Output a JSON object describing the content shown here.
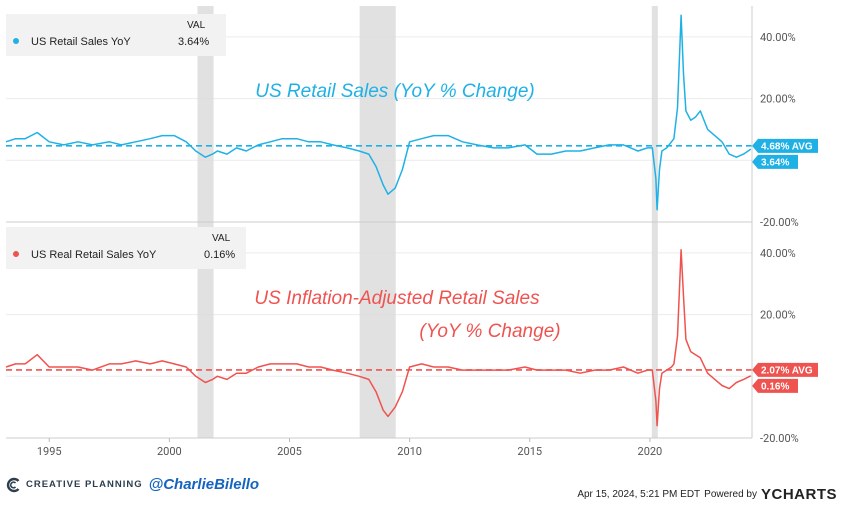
{
  "chart_data": [
    {
      "type": "line",
      "panel": "top",
      "title": "US Retail Sales (YoY % Change)",
      "legend_header": "VAL",
      "series": [
        {
          "name": "US Retail Sales YoY",
          "color": "#1fb1e6",
          "last_value_label": "3.64%",
          "avg_label": "4.68% AVG",
          "avg": 4.68,
          "x": [
            1993.2,
            1993.6,
            1994.0,
            1994.5,
            1995.0,
            1995.6,
            1996.2,
            1996.8,
            1997.5,
            1998.0,
            1998.6,
            1999.2,
            1999.7,
            2000.2,
            2000.7,
            2001.1,
            2001.5,
            2001.8,
            2002.0,
            2002.4,
            2002.8,
            2003.2,
            2003.7,
            2004.2,
            2004.7,
            2005.3,
            2005.8,
            2006.3,
            2006.8,
            2007.4,
            2007.9,
            2008.3,
            2008.6,
            2008.9,
            2009.1,
            2009.4,
            2009.7,
            2010.0,
            2010.5,
            2011.0,
            2011.6,
            2012.2,
            2012.8,
            2013.5,
            2014.1,
            2014.8,
            2015.3,
            2015.9,
            2016.5,
            2017.1,
            2017.7,
            2018.3,
            2018.9,
            2019.5,
            2019.9,
            2020.1,
            2020.25,
            2020.3,
            2020.4,
            2020.5,
            2020.7,
            2020.9,
            2021.0,
            2021.15,
            2021.3,
            2021.4,
            2021.5,
            2021.7,
            2021.9,
            2022.1,
            2022.4,
            2022.7,
            2023.0,
            2023.3,
            2023.6,
            2023.9,
            2024.2
          ],
          "y": [
            6,
            7,
            7,
            9,
            6,
            5,
            6,
            5,
            6,
            5,
            6,
            7,
            8,
            8,
            6,
            3,
            1,
            2,
            3,
            2,
            4,
            3,
            5,
            6,
            7,
            7,
            6,
            6,
            5,
            4,
            3,
            2,
            -2,
            -8,
            -11,
            -9,
            -3,
            6,
            7,
            8,
            8,
            6,
            5,
            4,
            4,
            5,
            2,
            2,
            3,
            3,
            4,
            5,
            5,
            3,
            4,
            4,
            -6,
            -16,
            -3,
            3,
            4,
            6,
            7,
            17,
            47,
            28,
            16,
            13,
            14,
            16,
            10,
            8,
            6,
            2,
            1,
            2,
            3.64
          ]
        }
      ],
      "ylim": [
        -20,
        50
      ],
      "yticks": [
        "40.00%",
        "20.00%",
        "-20.00%"
      ],
      "ytick_values": [
        40,
        20,
        -20
      ],
      "xlim": [
        1993.2,
        2024.25
      ]
    },
    {
      "type": "line",
      "panel": "bottom",
      "title_line1": "US Inflation-Adjusted Retail Sales",
      "title_line2": "(YoY % Change)",
      "legend_header": "VAL",
      "series": [
        {
          "name": "US Real Retail Sales YoY",
          "color": "#ef5350",
          "last_value_label": "0.16%",
          "avg_label": "2.07% AVG",
          "avg": 2.07,
          "x": [
            1993.2,
            1993.6,
            1994.0,
            1994.5,
            1995.0,
            1995.6,
            1996.2,
            1996.8,
            1997.5,
            1998.0,
            1998.6,
            1999.2,
            1999.7,
            2000.2,
            2000.7,
            2001.1,
            2001.5,
            2001.8,
            2002.0,
            2002.4,
            2002.8,
            2003.2,
            2003.7,
            2004.2,
            2004.7,
            2005.3,
            2005.8,
            2006.3,
            2006.8,
            2007.4,
            2007.9,
            2008.3,
            2008.6,
            2008.9,
            2009.1,
            2009.4,
            2009.7,
            2010.0,
            2010.5,
            2011.0,
            2011.6,
            2012.2,
            2012.8,
            2013.5,
            2014.1,
            2014.8,
            2015.3,
            2015.9,
            2016.5,
            2017.1,
            2017.7,
            2018.3,
            2018.9,
            2019.5,
            2019.9,
            2020.1,
            2020.25,
            2020.3,
            2020.4,
            2020.5,
            2020.7,
            2020.9,
            2021.0,
            2021.15,
            2021.3,
            2021.4,
            2021.5,
            2021.7,
            2021.9,
            2022.1,
            2022.4,
            2022.7,
            2023.0,
            2023.3,
            2023.6,
            2023.9,
            2024.2
          ],
          "y": [
            3,
            4,
            4,
            7,
            3,
            3,
            3,
            2,
            4,
            4,
            5,
            4,
            5,
            4,
            3,
            0,
            -2,
            -1,
            0,
            -1,
            1,
            1,
            3,
            4,
            4,
            4,
            3,
            3,
            2,
            1,
            0,
            -1,
            -5,
            -11,
            -13,
            -10,
            -5,
            3,
            4,
            3,
            3,
            2,
            2,
            2,
            2,
            3,
            2,
            2,
            2,
            1,
            2,
            2,
            3,
            1,
            2,
            2,
            -8,
            -16,
            -4,
            1,
            2,
            3,
            4,
            13,
            41,
            26,
            12,
            8,
            7,
            6,
            1,
            -1,
            -3,
            -4,
            -2,
            -1,
            0.16
          ]
        }
      ],
      "ylim": [
        -20,
        50
      ],
      "yticks": [
        "40.00%",
        "20.00%",
        "-20.00%"
      ],
      "ytick_values": [
        40,
        20,
        -20
      ],
      "xlim": [
        1993.2,
        2024.25
      ]
    }
  ],
  "x_axis": {
    "ticks": [
      "1995",
      "2000",
      "2005",
      "2010",
      "2015",
      "2020"
    ],
    "tick_values": [
      1995,
      2000,
      2005,
      2010,
      2015,
      2020
    ]
  },
  "recessions": [
    {
      "start": 2001.17,
      "end": 2001.84
    },
    {
      "start": 2007.92,
      "end": 2009.42
    },
    {
      "start": 2020.08,
      "end": 2020.33
    }
  ],
  "footer": {
    "brand": "CREATIVE PLANNING",
    "handle": "@CharlieBilello",
    "date": "Apr 15, 2024, 5:21 PM EDT",
    "powered_by": "Powered by",
    "ycharts": "YCHARTS"
  }
}
